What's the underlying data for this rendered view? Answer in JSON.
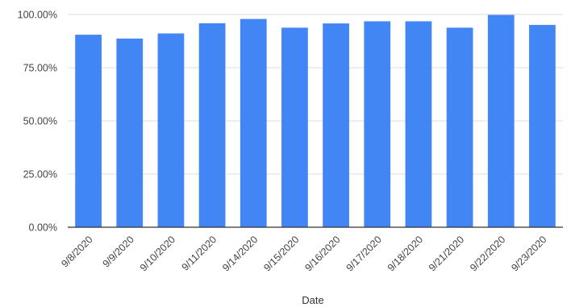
{
  "chart_data": {
    "type": "bar",
    "categories": [
      "9/8/2020",
      "9/9/2020",
      "9/10/2020",
      "9/11/2020",
      "9/14/2020",
      "9/15/2020",
      "9/16/2020",
      "9/17/2020",
      "9/18/2020",
      "9/21/2020",
      "9/22/2020",
      "9/23/2020"
    ],
    "values": [
      90.5,
      88.7,
      91.1,
      95.9,
      97.9,
      93.8,
      95.8,
      96.8,
      96.8,
      93.8,
      99.8,
      95.1
    ],
    "title": "",
    "xlabel": "Date",
    "ylabel": "",
    "ylim": [
      0,
      100
    ],
    "yticks": [
      "0.00%",
      "25.00%",
      "50.00%",
      "75.00%",
      "100.00%"
    ],
    "grid": true,
    "legend": "none",
    "colors": {
      "bar": "#4285f4",
      "grid": "#dddddd",
      "axis": "#333333"
    }
  }
}
